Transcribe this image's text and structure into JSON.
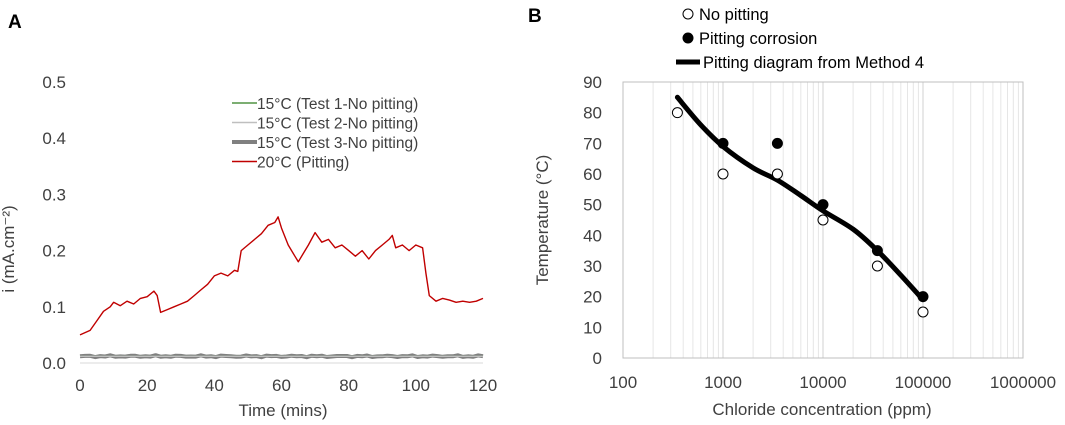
{
  "chart_data": [
    {
      "panel": "A",
      "type": "line",
      "title": "",
      "xlabel": "Time (mins)",
      "ylabel": "i (mA.cm⁻²)",
      "xlim": [
        0,
        120
      ],
      "ylim": [
        0,
        0.5
      ],
      "x_ticks": [
        0,
        20,
        40,
        60,
        80,
        100,
        120
      ],
      "y_ticks": [
        "0.0",
        "0.1",
        "0.2",
        "0.3",
        "0.4",
        "0.5"
      ],
      "legend": [
        {
          "label": "15°C (Test 1-No pitting)",
          "color": "#2e7d1f",
          "width": 1.2
        },
        {
          "label": "15°C (Test 2-No pitting)",
          "color": "#bfbfbf",
          "width": 1.4
        },
        {
          "label": "15°C (Test 3-No pitting)",
          "color": "#808080",
          "width": 4
        },
        {
          "label": "20°C (Pitting)",
          "color": "#c00000",
          "width": 1.4
        }
      ],
      "series": [
        {
          "name": "15°C (Test 1-No pitting)",
          "color": "#2e7d1f",
          "x": [
            0,
            120
          ],
          "y": [
            0.012,
            0.012
          ]
        },
        {
          "name": "15°C (Test 2-No pitting)",
          "color": "#bfbfbf",
          "x": [
            0,
            120
          ],
          "y": [
            0.012,
            0.012
          ]
        },
        {
          "name": "15°C (Test 3-No pitting)",
          "color": "#808080",
          "x": [
            0,
            120
          ],
          "y": [
            0.012,
            0.012
          ]
        },
        {
          "name": "20°C (Pitting)",
          "color": "#c00000",
          "x": [
            0,
            3,
            5,
            7,
            9,
            10,
            12,
            14,
            16,
            18,
            20,
            22,
            23,
            24,
            26,
            28,
            30,
            32,
            34,
            36,
            38,
            40,
            42,
            44,
            46,
            47,
            48,
            50,
            52,
            54,
            56,
            58,
            59,
            60,
            62,
            64,
            65,
            67,
            68,
            70,
            72,
            74,
            76,
            78,
            80,
            82,
            84,
            86,
            88,
            90,
            92,
            93,
            94,
            96,
            98,
            100,
            102,
            103,
            104,
            106,
            108,
            110,
            112,
            114,
            116,
            118,
            120
          ],
          "y": [
            0.05,
            0.058,
            0.075,
            0.092,
            0.1,
            0.108,
            0.102,
            0.11,
            0.105,
            0.115,
            0.118,
            0.128,
            0.12,
            0.09,
            0.095,
            0.1,
            0.105,
            0.11,
            0.12,
            0.13,
            0.14,
            0.155,
            0.16,
            0.155,
            0.165,
            0.163,
            0.2,
            0.21,
            0.22,
            0.23,
            0.245,
            0.25,
            0.26,
            0.24,
            0.21,
            0.19,
            0.18,
            0.2,
            0.21,
            0.232,
            0.215,
            0.22,
            0.205,
            0.21,
            0.2,
            0.19,
            0.2,
            0.185,
            0.2,
            0.21,
            0.22,
            0.227,
            0.205,
            0.21,
            0.2,
            0.21,
            0.205,
            0.16,
            0.12,
            0.11,
            0.115,
            0.112,
            0.108,
            0.11,
            0.108,
            0.11,
            0.115
          ]
        }
      ]
    },
    {
      "panel": "B",
      "type": "scatter",
      "title": "",
      "xlabel": "Chloride concentration (ppm)",
      "ylabel": "Temperature (°C)",
      "xscale": "log",
      "xlim": [
        100,
        1000000
      ],
      "ylim": [
        0,
        90
      ],
      "x_ticks": [
        "100",
        "1000",
        "10000",
        "100000",
        "1000000"
      ],
      "y_ticks": [
        "0",
        "10",
        "20",
        "30",
        "40",
        "50",
        "60",
        "70",
        "80",
        "90"
      ],
      "legend": [
        {
          "label": "No pitting",
          "marker": "open-circle"
        },
        {
          "label": "Pitting corrosion",
          "marker": "filled-circle"
        },
        {
          "label": "Pitting diagram from Method 4",
          "marker": "thick-line"
        }
      ],
      "series": [
        {
          "name": "No pitting",
          "x": [
            350,
            1000,
            3500,
            10000,
            35000,
            100000
          ],
          "y": [
            80,
            60,
            60,
            45,
            30,
            15
          ]
        },
        {
          "name": "Pitting corrosion",
          "x": [
            1000,
            3500,
            10000,
            35000,
            100000
          ],
          "y": [
            70,
            70,
            50,
            35,
            20
          ]
        },
        {
          "name": "Pitting diagram from Method 4",
          "x": [
            350,
            600,
            1000,
            2000,
            3500,
            6000,
            10000,
            20000,
            35000,
            60000,
            100000
          ],
          "y": [
            85,
            76,
            69,
            62,
            58,
            53,
            48,
            42,
            35,
            27,
            19
          ]
        }
      ]
    }
  ]
}
